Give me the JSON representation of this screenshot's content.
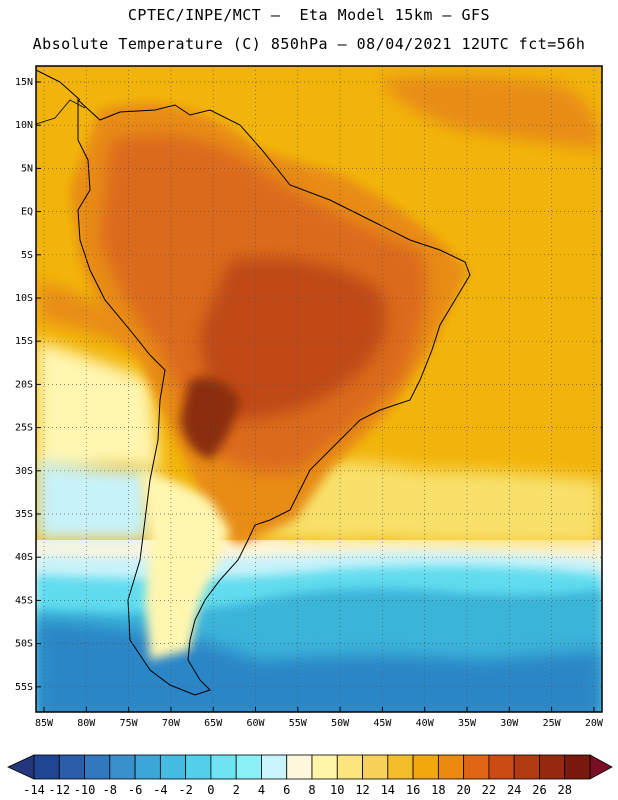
{
  "header": {
    "line1": "CPTEC/INPE/MCT –  Eta Model 15km – GFS",
    "line2": "Absolute Temperature (C) 850hPa – 08/04/2021 12UTC fct=56h"
  },
  "map": {
    "lat_ticks": [
      "15N",
      "10N",
      "5N",
      "EQ",
      "5S",
      "10S",
      "15S",
      "20S",
      "25S",
      "30S",
      "35S",
      "40S",
      "45S",
      "50S",
      "55S"
    ],
    "lon_ticks": [
      "85W",
      "80W",
      "75W",
      "70W",
      "65W",
      "60W",
      "55W",
      "50W",
      "45W",
      "40W",
      "35W",
      "30W",
      "25W",
      "20W"
    ],
    "colors": {
      "ocean_tropical": "#f2b40a",
      "orange_mid": "#e88c14",
      "land_warm": "#dc6a1e",
      "land_hot": "#c04a16",
      "hot_core": "#8a2e10",
      "yellow": "#f8e06a",
      "pale_yellow": "#fff6b0",
      "cream": "#fff5dc",
      "light_cyan": "#c8f2fa",
      "cyan": "#60dcee",
      "blue_mid": "#3ab4da",
      "blue_dark": "#2a86c6"
    }
  },
  "colorbar": {
    "labels": [
      "-14",
      "-12",
      "-10",
      "-8",
      "-6",
      "-4",
      "-2",
      "0",
      "2",
      "4",
      "6",
      "8",
      "10",
      "12",
      "14",
      "16",
      "18",
      "20",
      "22",
      "24",
      "26",
      "28"
    ],
    "colors": [
      "#1f4692",
      "#2a5ea8",
      "#3278bc",
      "#3a90cc",
      "#3da6d8",
      "#44bce2",
      "#52cfe9",
      "#6ee3f2",
      "#8af0f6",
      "#c8f4fc",
      "#fff8dc",
      "#fff5a8",
      "#fbe57c",
      "#f6d25a",
      "#f2bc2a",
      "#f0a80c",
      "#ec8a10",
      "#e06614",
      "#cc4a14",
      "#b23a10",
      "#962810",
      "#7a1a0e"
    ],
    "under_color": "#23377a",
    "over_color": "#7a0e24"
  }
}
